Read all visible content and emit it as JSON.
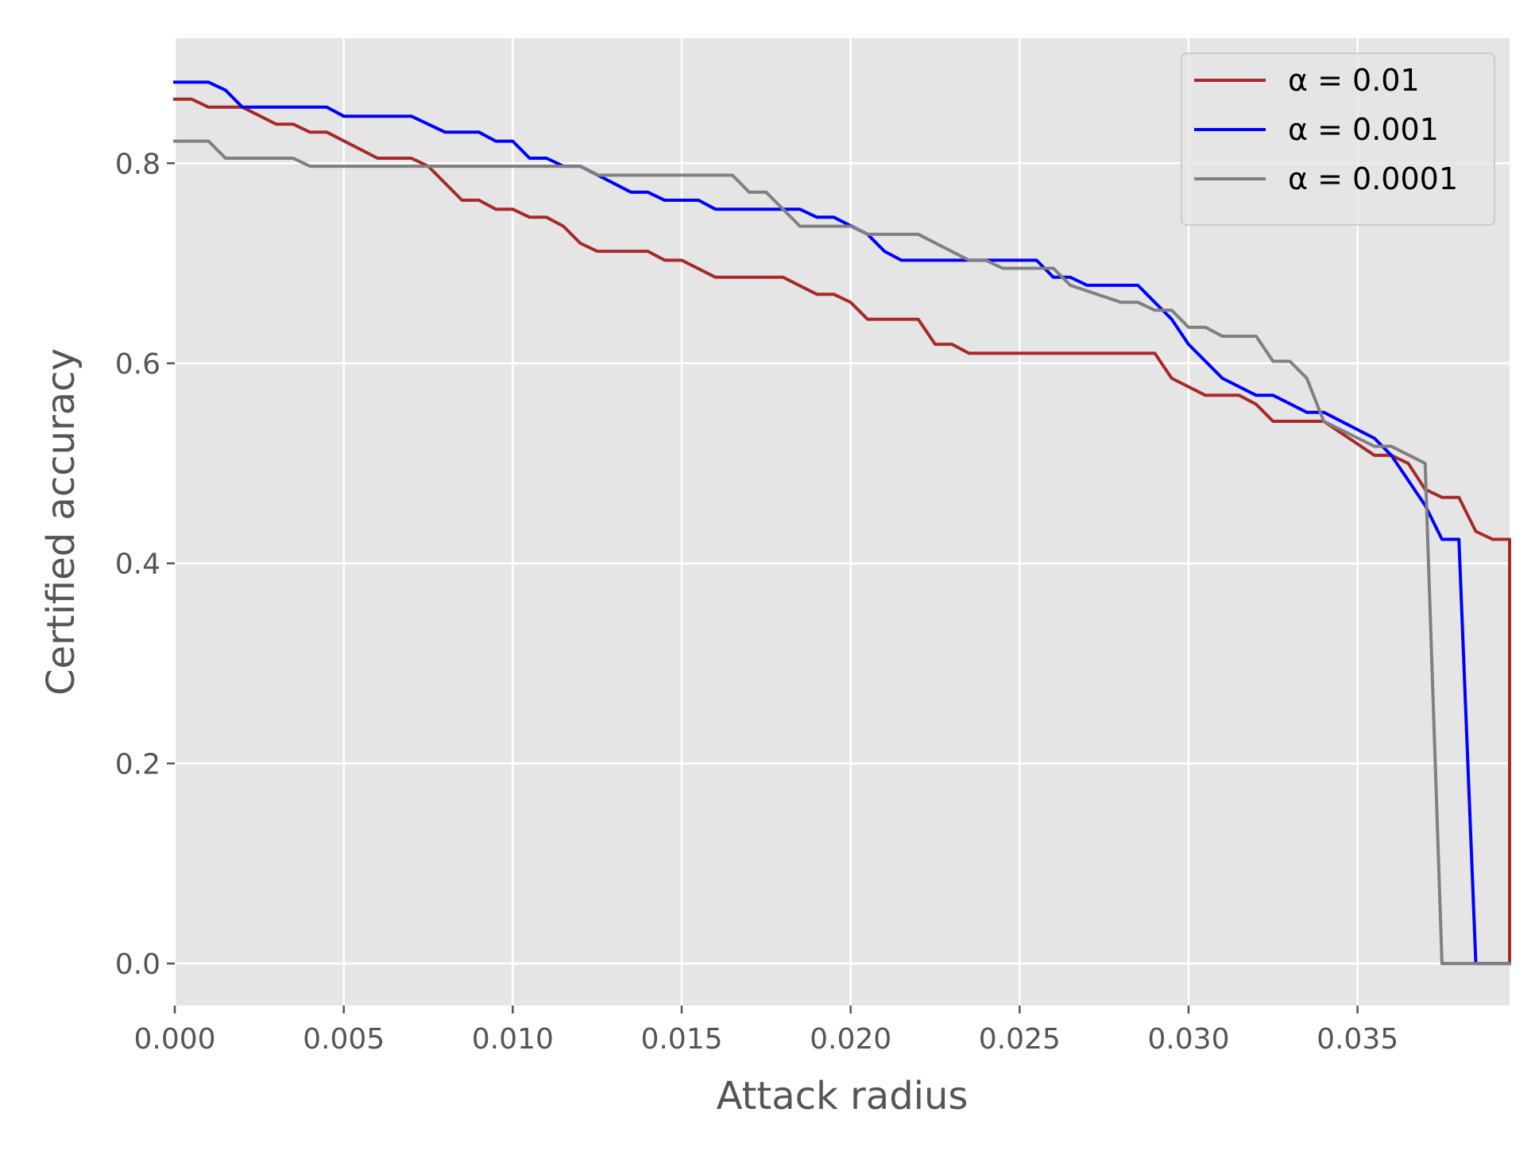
{
  "chart_data": {
    "type": "line",
    "title": "",
    "xlabel": "Attack radius",
    "ylabel": "Certified accuracy",
    "xlim": [
      0.0,
      0.0395
    ],
    "ylim": [
      -0.042,
      0.925
    ],
    "x_ticks": [
      0.0,
      0.005,
      0.01,
      0.015,
      0.02,
      0.025,
      0.03,
      0.035
    ],
    "x_tick_labels": [
      "0.000",
      "0.005",
      "0.010",
      "0.015",
      "0.020",
      "0.025",
      "0.030",
      "0.035"
    ],
    "y_ticks": [
      0.0,
      0.2,
      0.4,
      0.6,
      0.8
    ],
    "y_tick_labels": [
      "0.0",
      "0.2",
      "0.4",
      "0.6",
      "0.8"
    ],
    "grid": true,
    "legend_position": "top-right",
    "background": "#e5e5e5",
    "series": [
      {
        "name": "α = 0.01",
        "color": "#a52a2a",
        "points": [
          [
            0.0,
            0.864
          ],
          [
            0.0005,
            0.864
          ],
          [
            0.001,
            0.856
          ],
          [
            0.002,
            0.856
          ],
          [
            0.003,
            0.839
          ],
          [
            0.0035,
            0.839
          ],
          [
            0.004,
            0.831
          ],
          [
            0.0045,
            0.831
          ],
          [
            0.006,
            0.805
          ],
          [
            0.007,
            0.805
          ],
          [
            0.0075,
            0.797
          ],
          [
            0.0085,
            0.763
          ],
          [
            0.009,
            0.763
          ],
          [
            0.0095,
            0.754
          ],
          [
            0.01,
            0.754
          ],
          [
            0.0105,
            0.746
          ],
          [
            0.011,
            0.746
          ],
          [
            0.0115,
            0.737
          ],
          [
            0.012,
            0.72
          ],
          [
            0.0125,
            0.712
          ],
          [
            0.014,
            0.712
          ],
          [
            0.0145,
            0.703
          ],
          [
            0.015,
            0.703
          ],
          [
            0.016,
            0.686
          ],
          [
            0.018,
            0.686
          ],
          [
            0.019,
            0.669
          ],
          [
            0.0195,
            0.669
          ],
          [
            0.02,
            0.661
          ],
          [
            0.0205,
            0.644
          ],
          [
            0.022,
            0.644
          ],
          [
            0.0225,
            0.619
          ],
          [
            0.023,
            0.619
          ],
          [
            0.0235,
            0.61
          ],
          [
            0.029,
            0.61
          ],
          [
            0.0295,
            0.585
          ],
          [
            0.0305,
            0.568
          ],
          [
            0.0315,
            0.568
          ],
          [
            0.032,
            0.559
          ],
          [
            0.0325,
            0.542
          ],
          [
            0.034,
            0.542
          ],
          [
            0.0355,
            0.508
          ],
          [
            0.036,
            0.508
          ],
          [
            0.0365,
            0.5
          ],
          [
            0.037,
            0.474
          ],
          [
            0.0375,
            0.466
          ],
          [
            0.038,
            0.466
          ],
          [
            0.0385,
            0.432
          ],
          [
            0.039,
            0.424
          ],
          [
            0.0395,
            0.424
          ],
          [
            0.0395,
            0.0
          ]
        ]
      },
      {
        "name": "α = 0.001",
        "color": "#0000ff",
        "points": [
          [
            0.0,
            0.881
          ],
          [
            0.001,
            0.881
          ],
          [
            0.0015,
            0.873
          ],
          [
            0.002,
            0.856
          ],
          [
            0.0045,
            0.856
          ],
          [
            0.005,
            0.847
          ],
          [
            0.007,
            0.847
          ],
          [
            0.008,
            0.831
          ],
          [
            0.009,
            0.831
          ],
          [
            0.0095,
            0.822
          ],
          [
            0.01,
            0.822
          ],
          [
            0.0105,
            0.805
          ],
          [
            0.011,
            0.805
          ],
          [
            0.0115,
            0.797
          ],
          [
            0.012,
            0.797
          ],
          [
            0.0135,
            0.771
          ],
          [
            0.014,
            0.771
          ],
          [
            0.0145,
            0.763
          ],
          [
            0.0155,
            0.763
          ],
          [
            0.016,
            0.754
          ],
          [
            0.0185,
            0.754
          ],
          [
            0.019,
            0.746
          ],
          [
            0.0195,
            0.746
          ],
          [
            0.0205,
            0.729
          ],
          [
            0.021,
            0.712
          ],
          [
            0.0215,
            0.703
          ],
          [
            0.0235,
            0.703
          ],
          [
            0.025,
            0.703
          ],
          [
            0.0255,
            0.703
          ],
          [
            0.026,
            0.686
          ],
          [
            0.0265,
            0.686
          ],
          [
            0.027,
            0.678
          ],
          [
            0.0285,
            0.678
          ],
          [
            0.029,
            0.661
          ],
          [
            0.0295,
            0.644
          ],
          [
            0.03,
            0.619
          ],
          [
            0.031,
            0.585
          ],
          [
            0.032,
            0.568
          ],
          [
            0.0325,
            0.568
          ],
          [
            0.0335,
            0.551
          ],
          [
            0.034,
            0.551
          ],
          [
            0.0355,
            0.525
          ],
          [
            0.036,
            0.508
          ],
          [
            0.037,
            0.458
          ],
          [
            0.0375,
            0.424
          ],
          [
            0.038,
            0.424
          ],
          [
            0.0385,
            0.0
          ],
          [
            0.0395,
            0.0
          ]
        ]
      },
      {
        "name": "α = 0.0001",
        "color": "#808080",
        "points": [
          [
            0.0,
            0.822
          ],
          [
            0.001,
            0.822
          ],
          [
            0.0015,
            0.805
          ],
          [
            0.0035,
            0.805
          ],
          [
            0.004,
            0.797
          ],
          [
            0.012,
            0.797
          ],
          [
            0.0125,
            0.788
          ],
          [
            0.0165,
            0.788
          ],
          [
            0.017,
            0.771
          ],
          [
            0.0175,
            0.771
          ],
          [
            0.0185,
            0.737
          ],
          [
            0.02,
            0.737
          ],
          [
            0.0205,
            0.729
          ],
          [
            0.022,
            0.729
          ],
          [
            0.0235,
            0.703
          ],
          [
            0.024,
            0.703
          ],
          [
            0.0245,
            0.695
          ],
          [
            0.0255,
            0.695
          ],
          [
            0.026,
            0.695
          ],
          [
            0.0265,
            0.678
          ],
          [
            0.028,
            0.661
          ],
          [
            0.0285,
            0.661
          ],
          [
            0.029,
            0.653
          ],
          [
            0.0295,
            0.653
          ],
          [
            0.03,
            0.636
          ],
          [
            0.0305,
            0.636
          ],
          [
            0.031,
            0.627
          ],
          [
            0.032,
            0.627
          ],
          [
            0.0325,
            0.602
          ],
          [
            0.033,
            0.602
          ],
          [
            0.0335,
            0.585
          ],
          [
            0.034,
            0.542
          ],
          [
            0.0355,
            0.517
          ],
          [
            0.036,
            0.517
          ],
          [
            0.037,
            0.5
          ],
          [
            0.0375,
            0.0
          ],
          [
            0.0395,
            0.0
          ]
        ]
      }
    ]
  }
}
